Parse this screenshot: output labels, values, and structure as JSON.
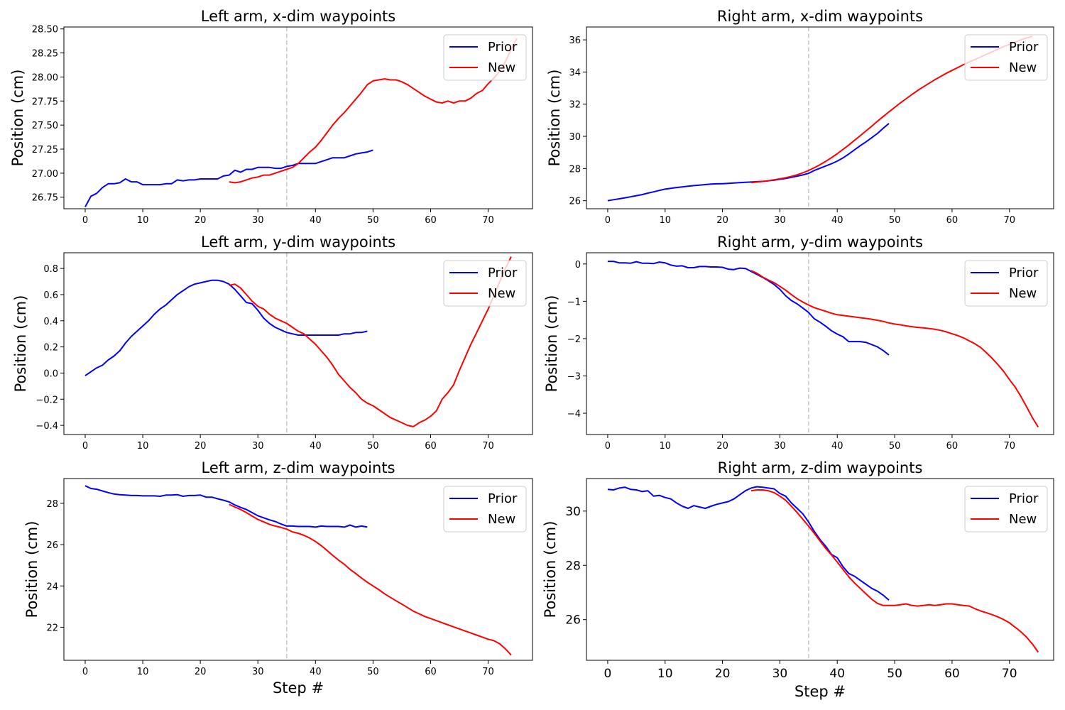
{
  "chart_data": [
    {
      "type": "line",
      "title": "Left arm, x-dim waypoints",
      "xlabel": "",
      "ylabel": "Position (cm)",
      "xlim": [
        -3.7,
        77.7
      ],
      "ylim": [
        26.63,
        28.52
      ],
      "xticks": [
        0,
        10,
        20,
        30,
        40,
        50,
        60,
        70
      ],
      "yticks": [
        26.75,
        27.0,
        27.25,
        27.5,
        27.75,
        28.0,
        28.25,
        28.5
      ],
      "ytick_labels": [
        "26.75",
        "27.00",
        "27.25",
        "27.50",
        "27.75",
        "28.00",
        "28.25",
        "28.50"
      ],
      "vline_x": 35,
      "legend": "top-right",
      "series": [
        {
          "name": "Prior",
          "color": "#0000ff",
          "x_start": 0,
          "values": [
            26.65,
            26.76,
            26.79,
            26.85,
            26.89,
            26.89,
            26.9,
            26.94,
            26.91,
            26.91,
            26.88,
            26.88,
            26.88,
            26.88,
            26.89,
            26.89,
            26.93,
            26.92,
            26.93,
            26.93,
            26.94,
            26.94,
            26.94,
            26.94,
            26.97,
            26.98,
            27.03,
            27.01,
            27.04,
            27.04,
            27.06,
            27.06,
            27.06,
            27.05,
            27.05,
            27.07,
            27.08,
            27.1,
            27.1,
            27.1,
            27.1,
            27.12,
            27.14,
            27.16,
            27.16,
            27.16,
            27.18,
            27.2,
            27.21,
            27.22,
            27.24
          ]
        },
        {
          "name": "New",
          "color": "#ff0000",
          "x_start": 25,
          "values": [
            26.91,
            26.9,
            26.91,
            26.93,
            26.95,
            26.96,
            26.98,
            26.98,
            27.0,
            27.02,
            27.04,
            27.06,
            27.1,
            27.16,
            27.22,
            27.27,
            27.34,
            27.42,
            27.5,
            27.57,
            27.63,
            27.7,
            27.77,
            27.84,
            27.92,
            27.96,
            27.97,
            27.98,
            27.97,
            27.97,
            27.95,
            27.92,
            27.88,
            27.84,
            27.8,
            27.77,
            27.74,
            27.73,
            27.75,
            27.73,
            27.75,
            27.75,
            27.78,
            27.83,
            27.86,
            27.93,
            27.99,
            28.06,
            28.16,
            28.29,
            28.4
          ]
        }
      ]
    },
    {
      "type": "line",
      "title": "Right arm, x-dim waypoints",
      "xlabel": "",
      "ylabel": "Position (cm)",
      "xlim": [
        -3.7,
        77.7
      ],
      "ylim": [
        25.5,
        36.8
      ],
      "xticks": [
        0,
        10,
        20,
        30,
        40,
        50,
        60,
        70
      ],
      "yticks": [
        26,
        28,
        30,
        32,
        34,
        36
      ],
      "ytick_labels": [
        "26",
        "28",
        "30",
        "32",
        "34",
        "36"
      ],
      "vline_x": 35,
      "legend": "top-right",
      "series": [
        {
          "name": "Prior",
          "color": "#0000ff",
          "x_start": 0,
          "values": [
            26.0,
            26.06,
            26.12,
            26.18,
            26.24,
            26.31,
            26.38,
            26.47,
            26.55,
            26.64,
            26.72,
            26.77,
            26.82,
            26.86,
            26.9,
            26.94,
            26.97,
            27.0,
            27.03,
            27.05,
            27.06,
            27.08,
            27.1,
            27.12,
            27.14,
            27.16,
            27.18,
            27.2,
            27.24,
            27.28,
            27.33,
            27.38,
            27.45,
            27.52,
            27.6,
            27.7,
            27.88,
            28.02,
            28.16,
            28.3,
            28.46,
            28.66,
            28.9,
            29.16,
            29.42,
            29.66,
            29.92,
            30.18,
            30.5,
            30.8
          ]
        },
        {
          "name": "New",
          "color": "#ff0000",
          "x_start": 25,
          "values": [
            27.12,
            27.16,
            27.2,
            27.24,
            27.3,
            27.36,
            27.43,
            27.51,
            27.61,
            27.73,
            27.88,
            28.05,
            28.24,
            28.45,
            28.68,
            28.92,
            29.19,
            29.46,
            29.75,
            30.04,
            30.34,
            30.63,
            30.94,
            31.23,
            31.52,
            31.8,
            32.08,
            32.34,
            32.6,
            32.85,
            33.08,
            33.3,
            33.52,
            33.72,
            33.92,
            34.1,
            34.28,
            34.46,
            34.62,
            34.78,
            34.94,
            35.1,
            35.26,
            35.42,
            35.58,
            35.72,
            35.86,
            36.0,
            36.12,
            36.22
          ]
        }
      ]
    },
    {
      "type": "line",
      "title": "Left arm, y-dim waypoints",
      "xlabel": "",
      "ylabel": "Position (cm)",
      "xlim": [
        -3.7,
        77.7
      ],
      "ylim": [
        -0.47,
        0.92
      ],
      "xticks": [
        0,
        10,
        20,
        30,
        40,
        50,
        60,
        70
      ],
      "yticks": [
        -0.4,
        -0.2,
        0.0,
        0.2,
        0.4,
        0.6,
        0.8
      ],
      "ytick_labels": [
        "−0.4",
        "−0.2",
        "0.0",
        "0.2",
        "0.4",
        "0.6",
        "0.8"
      ],
      "vline_x": 35,
      "legend": "top-right",
      "series": [
        {
          "name": "Prior",
          "color": "#0000ff",
          "x_start": 0,
          "values": [
            -0.02,
            0.01,
            0.04,
            0.06,
            0.1,
            0.13,
            0.17,
            0.23,
            0.28,
            0.32,
            0.36,
            0.4,
            0.45,
            0.49,
            0.52,
            0.56,
            0.6,
            0.63,
            0.66,
            0.68,
            0.69,
            0.7,
            0.71,
            0.71,
            0.7,
            0.68,
            0.64,
            0.59,
            0.54,
            0.53,
            0.48,
            0.42,
            0.38,
            0.35,
            0.33,
            0.31,
            0.3,
            0.29,
            0.29,
            0.29,
            0.29,
            0.29,
            0.29,
            0.29,
            0.29,
            0.3,
            0.3,
            0.31,
            0.31,
            0.32
          ]
        },
        {
          "name": "New",
          "color": "#ff0000",
          "x_start": 25,
          "values": [
            0.67,
            0.68,
            0.65,
            0.6,
            0.55,
            0.51,
            0.49,
            0.45,
            0.42,
            0.4,
            0.38,
            0.35,
            0.32,
            0.3,
            0.26,
            0.22,
            0.17,
            0.12,
            0.06,
            -0.01,
            -0.06,
            -0.11,
            -0.15,
            -0.2,
            -0.23,
            -0.25,
            -0.28,
            -0.31,
            -0.34,
            -0.36,
            -0.38,
            -0.4,
            -0.41,
            -0.38,
            -0.36,
            -0.33,
            -0.29,
            -0.2,
            -0.15,
            -0.09,
            0.02,
            0.12,
            0.22,
            0.31,
            0.4,
            0.49,
            0.59,
            0.7,
            0.8,
            0.89
          ]
        }
      ]
    },
    {
      "type": "line",
      "title": "Right arm, y-dim waypoints",
      "xlabel": "",
      "ylabel": "Position (cm)",
      "xlim": [
        -3.7,
        77.7
      ],
      "ylim": [
        -4.57,
        0.3
      ],
      "xticks": [
        0,
        10,
        20,
        30,
        40,
        50,
        60,
        70
      ],
      "yticks": [
        -4,
        -3,
        -2,
        -1,
        0
      ],
      "ytick_labels": [
        "−4",
        "−3",
        "−2",
        "−1",
        "0"
      ],
      "vline_x": 35,
      "legend": "top-right",
      "series": [
        {
          "name": "Prior",
          "color": "#0000ff",
          "x_start": 0,
          "values": [
            0.07,
            0.07,
            0.03,
            0.03,
            0.02,
            0.06,
            0.02,
            0.02,
            0.01,
            0.05,
            0.03,
            -0.03,
            -0.06,
            -0.05,
            -0.1,
            -0.1,
            -0.07,
            -0.07,
            -0.08,
            -0.08,
            -0.09,
            -0.14,
            -0.15,
            -0.11,
            -0.12,
            -0.2,
            -0.28,
            -0.36,
            -0.45,
            -0.55,
            -0.68,
            -0.85,
            -0.98,
            -1.07,
            -1.18,
            -1.3,
            -1.47,
            -1.56,
            -1.67,
            -1.79,
            -1.88,
            -1.95,
            -2.08,
            -2.08,
            -2.08,
            -2.1,
            -2.16,
            -2.22,
            -2.32,
            -2.44
          ]
        },
        {
          "name": "New",
          "color": "#ff0000",
          "x_start": 25,
          "values": [
            -0.18,
            -0.25,
            -0.35,
            -0.43,
            -0.5,
            -0.6,
            -0.7,
            -0.82,
            -0.93,
            -1.02,
            -1.1,
            -1.17,
            -1.22,
            -1.27,
            -1.32,
            -1.36,
            -1.38,
            -1.4,
            -1.42,
            -1.44,
            -1.46,
            -1.48,
            -1.51,
            -1.54,
            -1.58,
            -1.61,
            -1.63,
            -1.66,
            -1.68,
            -1.7,
            -1.71,
            -1.73,
            -1.75,
            -1.78,
            -1.82,
            -1.87,
            -1.92,
            -1.98,
            -2.06,
            -2.14,
            -2.24,
            -2.38,
            -2.53,
            -2.7,
            -2.88,
            -3.1,
            -3.3,
            -3.55,
            -3.83,
            -4.12,
            -4.37
          ]
        }
      ]
    },
    {
      "type": "line",
      "title": "Left arm, z-dim waypoints",
      "xlabel": "Step #",
      "ylabel": "Position (cm)",
      "xlim": [
        -3.7,
        77.7
      ],
      "ylim": [
        20.4,
        29.2
      ],
      "xticks": [
        0,
        10,
        20,
        30,
        40,
        50,
        60,
        70
      ],
      "yticks": [
        22,
        24,
        26,
        28
      ],
      "ytick_labels": [
        "22",
        "24",
        "26",
        "28"
      ],
      "vline_x": 35,
      "legend": "top-right",
      "series": [
        {
          "name": "Prior",
          "color": "#0000ff",
          "x_start": 0,
          "values": [
            28.85,
            28.72,
            28.68,
            28.6,
            28.52,
            28.45,
            28.42,
            28.4,
            28.38,
            28.38,
            28.36,
            28.36,
            28.36,
            28.34,
            28.4,
            28.4,
            28.42,
            28.34,
            28.38,
            28.38,
            28.4,
            28.3,
            28.3,
            28.22,
            28.15,
            28.07,
            27.92,
            27.8,
            27.7,
            27.55,
            27.4,
            27.3,
            27.2,
            27.12,
            27.0,
            26.9,
            26.9,
            26.88,
            26.88,
            26.88,
            26.85,
            26.9,
            26.88,
            26.88,
            26.88,
            26.85,
            26.95,
            26.85,
            26.9,
            26.85
          ]
        },
        {
          "name": "New",
          "color": "#ff0000",
          "x_start": 25,
          "values": [
            27.95,
            27.82,
            27.7,
            27.55,
            27.38,
            27.22,
            27.1,
            26.98,
            26.9,
            26.83,
            26.75,
            26.62,
            26.55,
            26.45,
            26.32,
            26.15,
            25.95,
            25.72,
            25.48,
            25.25,
            25.05,
            24.8,
            24.6,
            24.38,
            24.18,
            24.0,
            23.82,
            23.62,
            23.45,
            23.28,
            23.12,
            22.95,
            22.78,
            22.65,
            22.52,
            22.42,
            22.32,
            22.22,
            22.12,
            22.02,
            21.92,
            21.82,
            21.72,
            21.62,
            21.52,
            21.42,
            21.35,
            21.2,
            20.95,
            20.65
          ]
        }
      ]
    },
    {
      "type": "line",
      "title": "Right arm, z-dim waypoints",
      "xlabel": "Step #",
      "ylabel": "Position (cm)",
      "xlim": [
        -3.7,
        77.7
      ],
      "ylim": [
        24.5,
        31.2
      ],
      "xticks": [
        0,
        10,
        20,
        30,
        40,
        50,
        60,
        70
      ],
      "yticks": [
        26,
        28,
        30
      ],
      "ytick_labels": [
        "26",
        "28",
        "30"
      ],
      "vline_x": 35,
      "legend": "top-right",
      "series": [
        {
          "name": "Prior",
          "color": "#0000ff",
          "x_start": 0,
          "values": [
            30.8,
            30.78,
            30.85,
            30.88,
            30.8,
            30.78,
            30.72,
            30.75,
            30.55,
            30.58,
            30.5,
            30.45,
            30.3,
            30.18,
            30.1,
            30.2,
            30.15,
            30.1,
            30.18,
            30.25,
            30.3,
            30.35,
            30.45,
            30.6,
            30.75,
            30.85,
            30.9,
            30.88,
            30.85,
            30.82,
            30.65,
            30.55,
            30.3,
            30.1,
            29.9,
            29.6,
            29.25,
            28.95,
            28.7,
            28.4,
            28.28,
            27.95,
            27.7,
            27.6,
            27.45,
            27.3,
            27.15,
            27.05,
            26.9,
            26.72
          ]
        },
        {
          "name": "New",
          "color": "#ff0000",
          "x_start": 25,
          "values": [
            30.75,
            30.78,
            30.78,
            30.75,
            30.68,
            30.55,
            30.4,
            30.18,
            29.95,
            29.7,
            29.45,
            29.18,
            28.9,
            28.62,
            28.38,
            28.12,
            27.85,
            27.58,
            27.35,
            27.15,
            26.95,
            26.75,
            26.6,
            26.52,
            26.52,
            26.52,
            26.55,
            26.58,
            26.52,
            26.5,
            26.52,
            26.55,
            26.52,
            26.55,
            26.58,
            26.58,
            26.55,
            26.52,
            26.5,
            26.4,
            26.32,
            26.25,
            26.18,
            26.1,
            26.0,
            25.88,
            25.72,
            25.55,
            25.35,
            25.1,
            24.8
          ]
        }
      ]
    }
  ]
}
